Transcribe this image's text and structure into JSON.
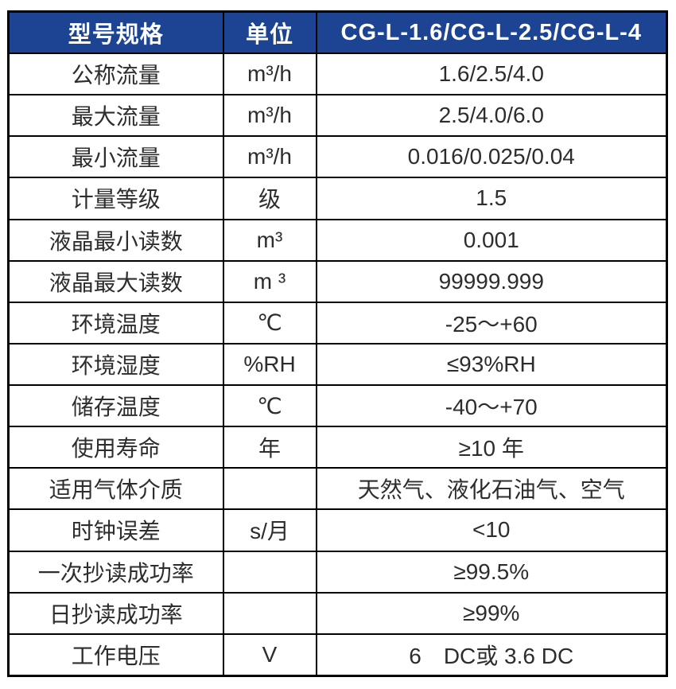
{
  "table": {
    "header": {
      "spec": "型号规格",
      "unit": "单位",
      "model": "CG-L-1.6/CG-L-2.5/CG-L-4"
    },
    "rows": [
      {
        "label": "公称流量",
        "unit": "m³/h",
        "value": "1.6/2.5/4.0"
      },
      {
        "label": "最大流量",
        "unit": "m³/h",
        "value": "2.5/4.0/6.0"
      },
      {
        "label": "最小流量",
        "unit": "m³/h",
        "value": "0.016/0.025/0.04"
      },
      {
        "label": "计量等级",
        "unit": "级",
        "value": "1.5"
      },
      {
        "label": "液晶最小读数",
        "unit": "m³",
        "value": "0.001"
      },
      {
        "label": "液晶最大读数",
        "unit": "m ³",
        "value": "99999.999"
      },
      {
        "label": "环境温度",
        "unit": "℃",
        "value": "-25～+60"
      },
      {
        "label": "环境湿度",
        "unit": "%RH",
        "value": "≤93%RH"
      },
      {
        "label": "储存温度",
        "unit": "℃",
        "value": "-40～+70"
      },
      {
        "label": "使用寿命",
        "unit": "年",
        "value": "≥10 年"
      },
      {
        "label": "适用气体介质",
        "unit": "",
        "value": "天然气、液化石油气、空气"
      },
      {
        "label": "时钟误差",
        "unit": "s/月",
        "value": "<10"
      },
      {
        "label": "一次抄读成功率",
        "unit": "",
        "value": "≥99.5%"
      },
      {
        "label": "日抄读成功率",
        "unit": "",
        "value": "≥99%"
      },
      {
        "label": "工作电压",
        "unit": "V",
        "value": "6　DC或 3.6 DC"
      }
    ],
    "colors": {
      "header_bg": "#1c4492",
      "header_text": "#ffffff",
      "body_text": "#2d2d2d",
      "border": "#000000"
    }
  }
}
